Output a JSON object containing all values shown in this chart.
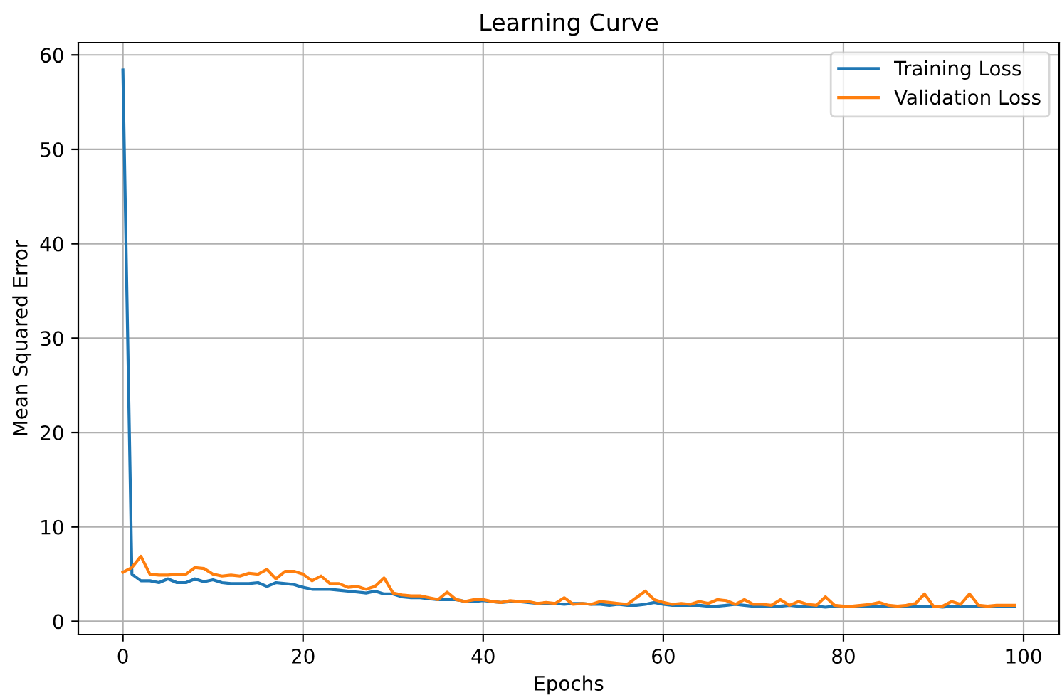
{
  "chart_data": {
    "type": "line",
    "title": "Learning Curve",
    "xlabel": "Epochs",
    "ylabel": "Mean Squared Error",
    "x": [
      0,
      1,
      2,
      3,
      4,
      5,
      6,
      7,
      8,
      9,
      10,
      11,
      12,
      13,
      14,
      15,
      16,
      17,
      18,
      19,
      20,
      21,
      22,
      23,
      24,
      25,
      26,
      27,
      28,
      29,
      30,
      31,
      32,
      33,
      34,
      35,
      36,
      37,
      38,
      39,
      40,
      41,
      42,
      43,
      44,
      45,
      46,
      47,
      48,
      49,
      50,
      51,
      52,
      53,
      54,
      55,
      56,
      57,
      58,
      59,
      60,
      61,
      62,
      63,
      64,
      65,
      66,
      67,
      68,
      69,
      70,
      71,
      72,
      73,
      74,
      75,
      76,
      77,
      78,
      79,
      80,
      81,
      82,
      83,
      84,
      85,
      86,
      87,
      88,
      89,
      90,
      91,
      92,
      93,
      94,
      95,
      96,
      97,
      98,
      99
    ],
    "series": [
      {
        "name": "Training Loss",
        "color": "#1f77b4",
        "values": [
          58.4,
          5.0,
          4.3,
          4.3,
          4.1,
          4.5,
          4.1,
          4.1,
          4.5,
          4.2,
          4.4,
          4.1,
          4.0,
          4.0,
          4.0,
          4.1,
          3.7,
          4.1,
          4.0,
          3.9,
          3.6,
          3.4,
          3.4,
          3.4,
          3.3,
          3.2,
          3.1,
          3.0,
          3.2,
          2.9,
          2.9,
          2.6,
          2.5,
          2.5,
          2.4,
          2.3,
          2.3,
          2.3,
          2.1,
          2.1,
          2.2,
          2.1,
          2.0,
          2.1,
          2.1,
          2.0,
          1.9,
          1.9,
          1.9,
          1.8,
          1.9,
          1.9,
          1.8,
          1.8,
          1.7,
          1.8,
          1.7,
          1.7,
          1.8,
          2.0,
          1.8,
          1.7,
          1.7,
          1.7,
          1.7,
          1.6,
          1.6,
          1.7,
          1.8,
          1.7,
          1.6,
          1.6,
          1.6,
          1.6,
          1.7,
          1.6,
          1.6,
          1.6,
          1.5,
          1.6,
          1.6,
          1.6,
          1.6,
          1.6,
          1.6,
          1.6,
          1.6,
          1.6,
          1.6,
          1.6,
          1.6,
          1.5,
          1.6,
          1.6,
          1.6,
          1.6,
          1.6,
          1.6,
          1.6,
          1.6
        ]
      },
      {
        "name": "Validation Loss",
        "color": "#ff7f0e",
        "values": [
          5.2,
          5.7,
          6.9,
          5.0,
          4.9,
          4.9,
          5.0,
          5.0,
          5.7,
          5.6,
          5.0,
          4.8,
          4.9,
          4.8,
          5.1,
          5.0,
          5.5,
          4.5,
          5.3,
          5.3,
          5.0,
          4.3,
          4.8,
          4.0,
          4.0,
          3.6,
          3.7,
          3.4,
          3.7,
          4.6,
          3.0,
          2.8,
          2.7,
          2.7,
          2.5,
          2.3,
          3.1,
          2.3,
          2.1,
          2.3,
          2.3,
          2.1,
          2.0,
          2.2,
          2.1,
          2.1,
          1.9,
          2.0,
          1.9,
          2.5,
          1.8,
          1.9,
          1.8,
          2.1,
          2.0,
          1.9,
          1.8,
          2.5,
          3.2,
          2.3,
          2.0,
          1.8,
          1.9,
          1.8,
          2.1,
          1.9,
          2.3,
          2.2,
          1.8,
          2.3,
          1.8,
          1.8,
          1.7,
          2.3,
          1.7,
          2.1,
          1.8,
          1.7,
          2.6,
          1.7,
          1.6,
          1.6,
          1.7,
          1.8,
          2.0,
          1.7,
          1.6,
          1.7,
          1.9,
          2.9,
          1.6,
          1.6,
          2.1,
          1.8,
          2.9,
          1.7,
          1.6,
          1.7,
          1.7,
          1.7
        ]
      }
    ],
    "xlim": [
      -4.95,
      103.95
    ],
    "ylim": [
      -1.4,
      61.3
    ],
    "xticks": [
      0,
      20,
      40,
      60,
      80,
      100
    ],
    "yticks": [
      0,
      10,
      20,
      30,
      40,
      50,
      60
    ],
    "grid": true,
    "legend": "top right",
    "line_style": "solid",
    "marker": "none"
  }
}
